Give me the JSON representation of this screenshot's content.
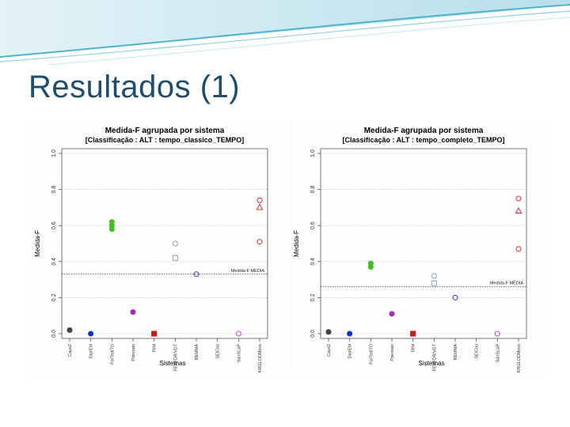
{
  "slide": {
    "title": "Resultados (1)",
    "theme_colors": {
      "title": "#1e4e6c",
      "header_light": "#cfeaf2",
      "header_accent": "#4fb3cc"
    }
  },
  "chart_data": [
    {
      "type": "scatter",
      "title": "Medida-F agrupada por sistema",
      "subtitle": "[Classificação : ALT : tempo_classico_TEMPO]",
      "xlabel": "Sistemas",
      "ylabel": "Medida-F",
      "categories": [
        "Cayo2",
        "DiorEM",
        "ForTedlTO",
        "Pdevoan",
        "RIM",
        "FEATOR/VDT",
        "REMMA",
        "SEICos",
        "SdnSLaP",
        "KRGLODMovs"
      ],
      "ylim": [
        0,
        1
      ],
      "yticks": [
        "0.0",
        "0.2",
        "0.4",
        "0.6",
        "0.8",
        "1.0"
      ],
      "grid": "dotted horizontal",
      "reference_line": {
        "label": "Medida-F MÉDIA",
        "y": 0.33
      },
      "points": [
        {
          "category": "Cayo2",
          "y": 0.02,
          "color": "#444444",
          "marker": "circle"
        },
        {
          "category": "DiorEM",
          "y": 0.0,
          "color": "#1030c0",
          "marker": "circle"
        },
        {
          "category": "ForTedlTO",
          "y": 0.58,
          "color": "#40c020",
          "marker": "circle"
        },
        {
          "category": "ForTedlTO",
          "y": 0.6,
          "color": "#40c020",
          "marker": "circle"
        },
        {
          "category": "ForTedlTO",
          "y": 0.62,
          "color": "#40c020",
          "marker": "circle"
        },
        {
          "category": "Pdevoan",
          "y": 0.12,
          "color": "#a030b0",
          "marker": "circle"
        },
        {
          "category": "RIM",
          "y": 0.0,
          "color": "#c02020",
          "marker": "square"
        },
        {
          "category": "FEATOR/VDT",
          "y": 0.42,
          "color": "#9aa3c0",
          "marker": "square-open"
        },
        {
          "category": "FEATOR/VDT",
          "y": 0.5,
          "color": "#9aa3c0",
          "marker": "circle-open"
        },
        {
          "category": "REMMA",
          "y": 0.33,
          "color": "#4050b0",
          "marker": "circle-open"
        },
        {
          "category": "SdnSLaP",
          "y": 0.0,
          "color": "#c050d0",
          "marker": "circle-open"
        },
        {
          "category": "KRGLODMovs",
          "y": 0.51,
          "color": "#d04040",
          "marker": "circle-open"
        },
        {
          "category": "KRGLODMovs",
          "y": 0.7,
          "color": "#d04040",
          "marker": "triangle-open"
        },
        {
          "category": "KRGLODMovs",
          "y": 0.74,
          "color": "#d04040",
          "marker": "circle-open"
        }
      ]
    },
    {
      "type": "scatter",
      "title": "Medida-F agrupada por sistema",
      "subtitle": "[Classificação : ALT : tempo_completo_TEMPO]",
      "xlabel": "Sistemas",
      "ylabel": "Medida-F",
      "categories": [
        "Cayo2",
        "DiorEM",
        "ForTedlTO",
        "Pdevoan",
        "RIM",
        "FEATOR/VDT",
        "REMMA",
        "SEICos",
        "SdnSLaP",
        "KRGLODMovs"
      ],
      "ylim": [
        0,
        1
      ],
      "yticks": [
        "0.0",
        "0.2",
        "0.4",
        "0.6",
        "0.8",
        "1.0"
      ],
      "grid": "dotted horizontal",
      "reference_line": {
        "label": "Medida-F MÉDIA",
        "y": 0.26
      },
      "points": [
        {
          "category": "Cayo2",
          "y": 0.01,
          "color": "#444444",
          "marker": "circle"
        },
        {
          "category": "DiorEM",
          "y": 0.0,
          "color": "#1030c0",
          "marker": "circle"
        },
        {
          "category": "ForTedlTO",
          "y": 0.37,
          "color": "#40c020",
          "marker": "circle"
        },
        {
          "category": "ForTedlTO",
          "y": 0.39,
          "color": "#40c020",
          "marker": "circle"
        },
        {
          "category": "Pdevoan",
          "y": 0.11,
          "color": "#a030b0",
          "marker": "circle"
        },
        {
          "category": "RIM",
          "y": 0.0,
          "color": "#c02020",
          "marker": "square"
        },
        {
          "category": "FEATOR/VDT",
          "y": 0.28,
          "color": "#9aa3c0",
          "marker": "square-open"
        },
        {
          "category": "FEATOR/VDT",
          "y": 0.32,
          "color": "#9aa3c0",
          "marker": "circle-open"
        },
        {
          "category": "REMMA",
          "y": 0.2,
          "color": "#4050b0",
          "marker": "circle-open"
        },
        {
          "category": "SdnSLaP",
          "y": 0.0,
          "color": "#c050d0",
          "marker": "circle-open"
        },
        {
          "category": "KRGLODMovs",
          "y": 0.47,
          "color": "#d04040",
          "marker": "circle-open"
        },
        {
          "category": "KRGLODMovs",
          "y": 0.68,
          "color": "#d04040",
          "marker": "triangle-open"
        },
        {
          "category": "KRGLODMovs",
          "y": 0.75,
          "color": "#d04040",
          "marker": "circle-open"
        }
      ]
    }
  ]
}
